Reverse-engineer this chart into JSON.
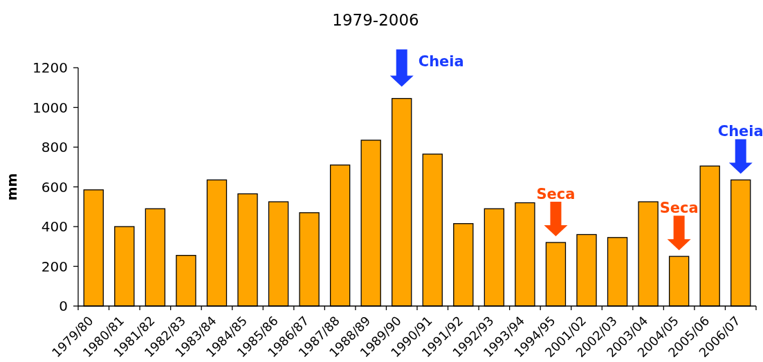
{
  "chart_data": {
    "type": "bar",
    "title": "1979-2006",
    "ylabel": "mm",
    "categories": [
      "1979/80",
      "1980/81",
      "1981/82",
      "1982/83",
      "1983/84",
      "1984/85",
      "1985/86",
      "1986/87",
      "1987/88",
      "1988/89",
      "1989/90",
      "1990/91",
      "1991/92",
      "1992/93",
      "1993/94",
      "1994/95",
      "2001/02",
      "2002/03",
      "2003/04",
      "2004/05",
      "2005/06",
      "2006/07"
    ],
    "values": [
      585,
      400,
      490,
      255,
      635,
      565,
      525,
      470,
      710,
      835,
      1045,
      765,
      415,
      490,
      520,
      320,
      360,
      345,
      525,
      250,
      705,
      635
    ],
    "color": "#ffa500",
    "ylim": [
      0,
      1200
    ],
    "yticks": [
      0,
      200,
      400,
      600,
      800,
      1000,
      1200
    ],
    "annotations": [
      {
        "text": "Cheia",
        "x": "1989/90",
        "y": 1045
      },
      {
        "text": "Seca",
        "x": "1994/95",
        "y": 320
      },
      {
        "text": "Seca",
        "x": "2004/05",
        "y": 250
      },
      {
        "text": "Cheia",
        "x": "2006/07",
        "y": 635
      }
    ]
  }
}
